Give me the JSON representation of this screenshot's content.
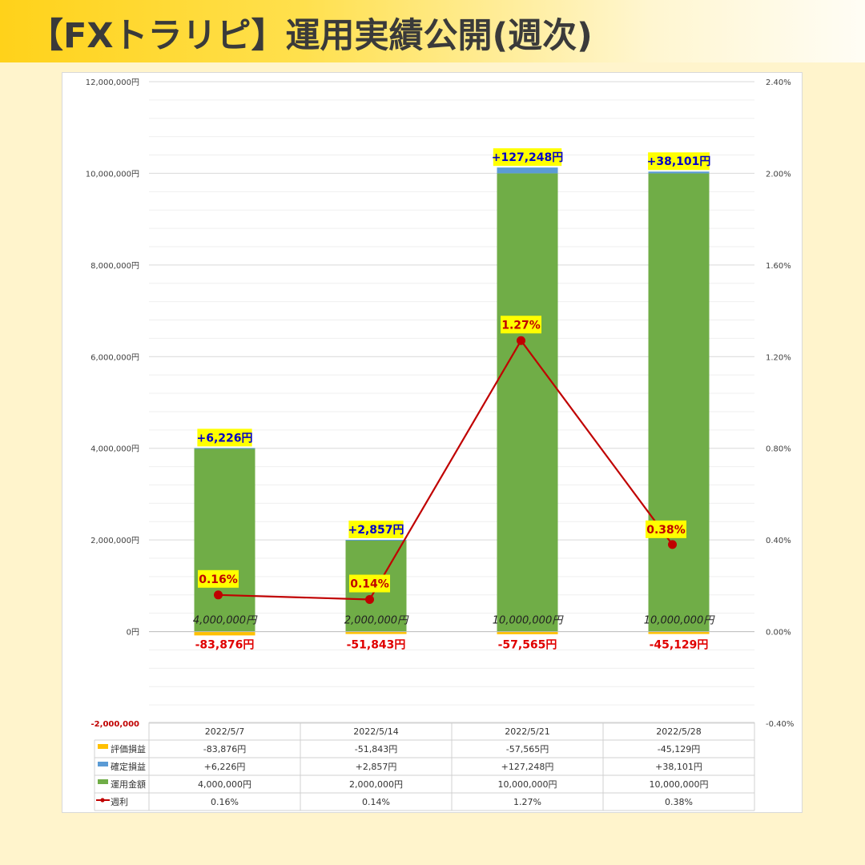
{
  "header": {
    "title": "【FXトラリピ】運用実績公開(週次)"
  },
  "colors": {
    "header_start": "#ffd21a",
    "background": "#fff4cc",
    "eval_bar": "#ffc000",
    "profit_bar": "#5b9bd5",
    "amount_bar": "#70ad47",
    "rate_line": "#c00000",
    "label_highlight": "#ffff00",
    "profit_text": "#0000c8",
    "negative_text": "#e00000"
  },
  "chart_data": {
    "type": "bar",
    "stacked": true,
    "categories": [
      "2022/5/7",
      "2022/5/14",
      "2022/5/21",
      "2022/5/28"
    ],
    "series": [
      {
        "name": "評価損益",
        "axis": "left",
        "values": [
          -83876,
          -51843,
          -57565,
          -45129
        ],
        "labels": [
          "-83,876円",
          "-51,843円",
          "-57,565円",
          "-45,129円"
        ]
      },
      {
        "name": "確定損益",
        "axis": "left",
        "values": [
          6226,
          2857,
          127248,
          38101
        ],
        "labels": [
          "+6,226円",
          "+2,857円",
          "+127,248円",
          "+38,101円"
        ]
      },
      {
        "name": "運用金額",
        "axis": "left",
        "values": [
          4000000,
          2000000,
          10000000,
          10000000
        ],
        "labels": [
          "4,000,000円",
          "2,000,000円",
          "10,000,000円",
          "10,000,000円"
        ]
      },
      {
        "name": "週利",
        "axis": "right",
        "type": "line",
        "values": [
          0.16,
          0.14,
          1.27,
          0.38
        ],
        "labels": [
          "0.16%",
          "0.14%",
          "1.27%",
          "0.38%"
        ]
      }
    ],
    "y_left": {
      "range": [
        -2000000,
        12000000
      ],
      "ticks": [
        "12,000,000円",
        "10,000,000円",
        "8,000,000円",
        "6,000,000円",
        "4,000,000円",
        "2,000,000円",
        "0円",
        "-2,000,000"
      ],
      "tick_values": [
        12000000,
        10000000,
        8000000,
        6000000,
        4000000,
        2000000,
        0,
        -2000000
      ]
    },
    "y_right": {
      "range": [
        -0.4,
        2.4
      ],
      "ticks": [
        "2.40%",
        "2.00%",
        "1.60%",
        "1.20%",
        "0.80%",
        "0.40%",
        "0.00%",
        "-0.40%"
      ],
      "tick_values": [
        2.4,
        2.0,
        1.6,
        1.2,
        0.8,
        0.4,
        0.0,
        -0.4
      ]
    },
    "grid": true,
    "data_table": {
      "rows": [
        {
          "legend": "評価損益",
          "marker": "bar",
          "color_key": "eval_bar",
          "cells": [
            "-83,876円",
            "-51,843円",
            "-57,565円",
            "-45,129円"
          ]
        },
        {
          "legend": "確定損益",
          "marker": "bar",
          "color_key": "profit_bar",
          "cells": [
            "+6,226円",
            "+2,857円",
            "+127,248円",
            "+38,101円"
          ]
        },
        {
          "legend": "運用金額",
          "marker": "bar",
          "color_key": "amount_bar",
          "cells": [
            "4,000,000円",
            "2,000,000円",
            "10,000,000円",
            "10,000,000円"
          ]
        },
        {
          "legend": "週利",
          "marker": "line",
          "color_key": "rate_line",
          "cells": [
            "0.16%",
            "0.14%",
            "1.27%",
            "0.38%"
          ]
        }
      ]
    }
  }
}
